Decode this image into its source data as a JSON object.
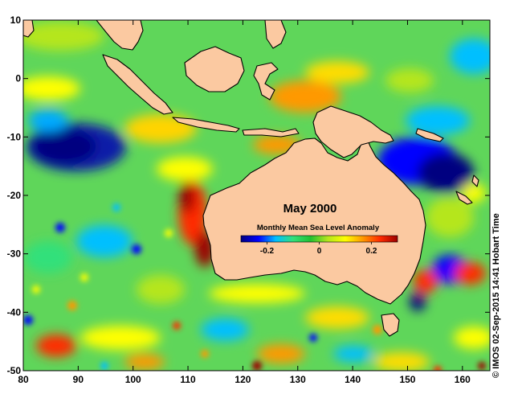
{
  "map": {
    "title": "May 2000",
    "colorbar_title": "Monthly Mean Sea Level Anomaly",
    "colorbar_ticks": [
      "-0.2",
      "0",
      "0.2"
    ],
    "colorbar_range": [
      -0.3,
      0.3
    ],
    "colorbar_colors": [
      "#000080",
      "#0000ff",
      "#00bfff",
      "#33e07a",
      "#22c032",
      "#b5e61d",
      "#ffff00",
      "#ff9900",
      "#ff2a00",
      "#9b0000"
    ],
    "lon_ticks": [
      "80",
      "90",
      "100",
      "110",
      "120",
      "130",
      "140",
      "150",
      "160"
    ],
    "lat_ticks": [
      "10",
      "0",
      "-10",
      "-20",
      "-30",
      "-40",
      "-50"
    ],
    "lon_range": [
      80,
      165
    ],
    "lat_range": [
      -50,
      10
    ],
    "land_color": "#fbc9a1",
    "ocean_base_color": "#5fd65a",
    "credit": "© IMOS 02-Sep-2015 14:41 Hobart Time"
  }
}
